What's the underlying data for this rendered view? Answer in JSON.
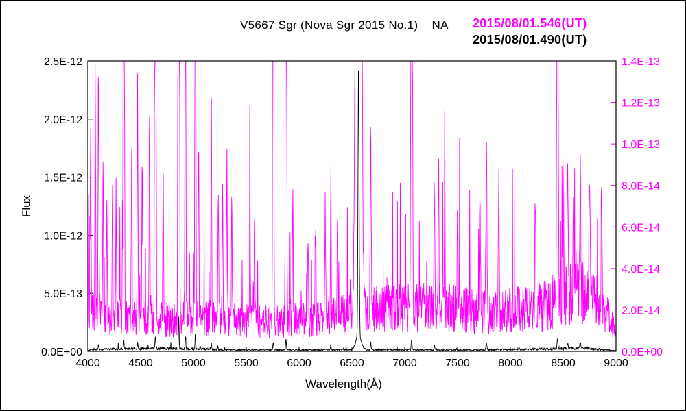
{
  "figure": {
    "title": "V5667 Sgr (Nova Sgr 2015 No.1)    NA",
    "legend": [
      {
        "label": "2015/08/01.546(UT)",
        "color": "#ff00ff"
      },
      {
        "label": "2015/08/01.490(UT)",
        "color": "#000000"
      }
    ],
    "background": "#ffffff",
    "frame_color": "#000000"
  },
  "chart_data": {
    "type": "line",
    "title": "V5667 Sgr (Nova Sgr 2015 No.1)    NA",
    "xlabel": "Wavelength(Å)",
    "ylabel": "Flux",
    "grid": false,
    "legend_position": "top-right",
    "x_axis": {
      "min": 4000,
      "max": 9000,
      "tick_values": [
        4000,
        4500,
        5000,
        5500,
        6000,
        6500,
        7000,
        7500,
        8000,
        8500,
        9000
      ],
      "tick_labels": [
        "4000",
        "4500",
        "5000",
        "5500",
        "6000",
        "6500",
        "7000",
        "7500",
        "8000",
        "8500",
        "9000"
      ]
    },
    "left_axis": {
      "min": 0,
      "max": 2.5e-12,
      "color": "#000000",
      "tick_values": [
        0,
        5e-13,
        1e-12,
        1.5e-12,
        2e-12,
        2.5e-12
      ],
      "tick_labels": [
        "0.0E+00",
        "5.0E-13",
        "1.0E-12",
        "1.5E-12",
        "2.0E-12",
        "2.5E-12"
      ]
    },
    "right_axis": {
      "min": 0,
      "max": 1.4e-13,
      "color": "#ff00ff",
      "tick_values": [
        0,
        2e-14,
        4e-14,
        6e-14,
        8e-14,
        1e-13,
        1.2e-13,
        1.4e-13
      ],
      "tick_labels": [
        "0.0E+00",
        "2.0E-14",
        "4.0E-14",
        "6.0E-14",
        "8.0E-14",
        "1.0E-13",
        "1.2E-13",
        "1.4E-13"
      ]
    },
    "series": [
      {
        "name": "2015/08/01.546(UT)",
        "color": "#ff00ff",
        "axis": "right",
        "unit": 1e-14,
        "seed": 97531,
        "step": 3,
        "noise": {
          "mult_min": 0.45,
          "mult_span": 1.15,
          "spike_prob": 0.05,
          "spike_min": 1.4,
          "spike_span": 2.4
        },
        "baseline": [
          [
            4000,
            1.8
          ],
          [
            4300,
            1.7
          ],
          [
            4700,
            1.5
          ],
          [
            5200,
            1.5
          ],
          [
            5600,
            1.4
          ],
          [
            6200,
            1.5
          ],
          [
            6700,
            2.0
          ],
          [
            7400,
            2.1
          ],
          [
            7800,
            1.8
          ],
          [
            8300,
            2.1
          ],
          [
            8600,
            2.9
          ],
          [
            8800,
            2.5
          ],
          [
            8960,
            1.4
          ],
          [
            9000,
            0.6
          ]
        ],
        "emission_lines": [
          [
            4005,
            7,
            6
          ],
          [
            4026,
            9,
            8
          ],
          [
            4070,
            12,
            8
          ],
          [
            4101,
            12,
            9
          ],
          [
            4144,
            8,
            8
          ],
          [
            4180,
            6,
            8
          ],
          [
            4233,
            7,
            8
          ],
          [
            4267,
            6,
            8
          ],
          [
            4340,
            40,
            10
          ],
          [
            4415,
            9,
            8
          ],
          [
            4471,
            11,
            8
          ],
          [
            4515,
            8,
            8
          ],
          [
            4584,
            10,
            8
          ],
          [
            4640,
            30,
            12
          ],
          [
            4713,
            7,
            8
          ],
          [
            4861,
            70,
            11
          ],
          [
            4924,
            25,
            9
          ],
          [
            5018,
            35,
            9
          ],
          [
            5048,
            9,
            8
          ],
          [
            5169,
            12,
            8
          ],
          [
            5235,
            6,
            8
          ],
          [
            5276,
            7,
            8
          ],
          [
            5317,
            8,
            8
          ],
          [
            5363,
            6,
            8
          ],
          [
            5535,
            6,
            8
          ],
          [
            5577,
            5,
            7
          ],
          [
            5755,
            35,
            10
          ],
          [
            5876,
            40,
            11
          ],
          [
            5940,
            6,
            8
          ],
          [
            6084,
            4,
            8
          ],
          [
            6157,
            5,
            8
          ],
          [
            6247,
            6,
            8
          ],
          [
            6300,
            7,
            8
          ],
          [
            6364,
            5,
            8
          ],
          [
            6563,
            110,
            40
          ],
          [
            6678,
            9,
            10
          ],
          [
            7065,
            40,
            14
          ],
          [
            7281,
            6,
            9
          ],
          [
            7320,
            7,
            9
          ],
          [
            7378,
            5,
            9
          ],
          [
            7500,
            4,
            10
          ],
          [
            7712,
            6,
            10
          ],
          [
            7773,
            8,
            12
          ],
          [
            7890,
            6,
            10
          ],
          [
            8236,
            5,
            10
          ],
          [
            8446,
            35,
            12
          ],
          [
            8498,
            7,
            10
          ],
          [
            8542,
            7,
            10
          ],
          [
            8598,
            6,
            10
          ],
          [
            8662,
            7,
            10
          ],
          [
            8750,
            7,
            10
          ],
          [
            8863,
            6,
            10
          ]
        ]
      },
      {
        "name": "2015/08/01.490(UT)",
        "color": "#000000",
        "axis": "left",
        "unit": 1e-12,
        "seed": 24680,
        "step": 3,
        "noise": {
          "mult_min": 0.5,
          "mult_span": 1.0,
          "spike_prob": 0.02,
          "spike_min": 1.4,
          "spike_span": 1.6
        },
        "baseline": [
          [
            4000,
            0.012
          ],
          [
            4300,
            0.022
          ],
          [
            4700,
            0.028
          ],
          [
            5000,
            0.022
          ],
          [
            5400,
            0.013
          ],
          [
            6000,
            0.012
          ],
          [
            6800,
            0.014
          ],
          [
            7600,
            0.012
          ],
          [
            8200,
            0.018
          ],
          [
            8700,
            0.028
          ],
          [
            9000,
            0.006
          ]
        ],
        "emission_lines": [
          [
            4101,
            0.05,
            7
          ],
          [
            4340,
            0.08,
            7
          ],
          [
            4471,
            0.05,
            7
          ],
          [
            4640,
            0.09,
            9
          ],
          [
            4861,
            0.27,
            7
          ],
          [
            4924,
            0.1,
            7
          ],
          [
            5018,
            0.13,
            7
          ],
          [
            5169,
            0.06,
            7
          ],
          [
            5755,
            0.07,
            8
          ],
          [
            5876,
            0.1,
            8
          ],
          [
            6300,
            0.05,
            7
          ],
          [
            6563,
            2.33,
            12
          ],
          [
            6563,
            0.12,
            60
          ],
          [
            6678,
            0.07,
            8
          ],
          [
            7065,
            0.09,
            9
          ],
          [
            7281,
            0.04,
            8
          ],
          [
            7773,
            0.06,
            10
          ],
          [
            8446,
            0.09,
            10
          ],
          [
            8542,
            0.05,
            9
          ],
          [
            8662,
            0.05,
            9
          ]
        ]
      }
    ]
  }
}
